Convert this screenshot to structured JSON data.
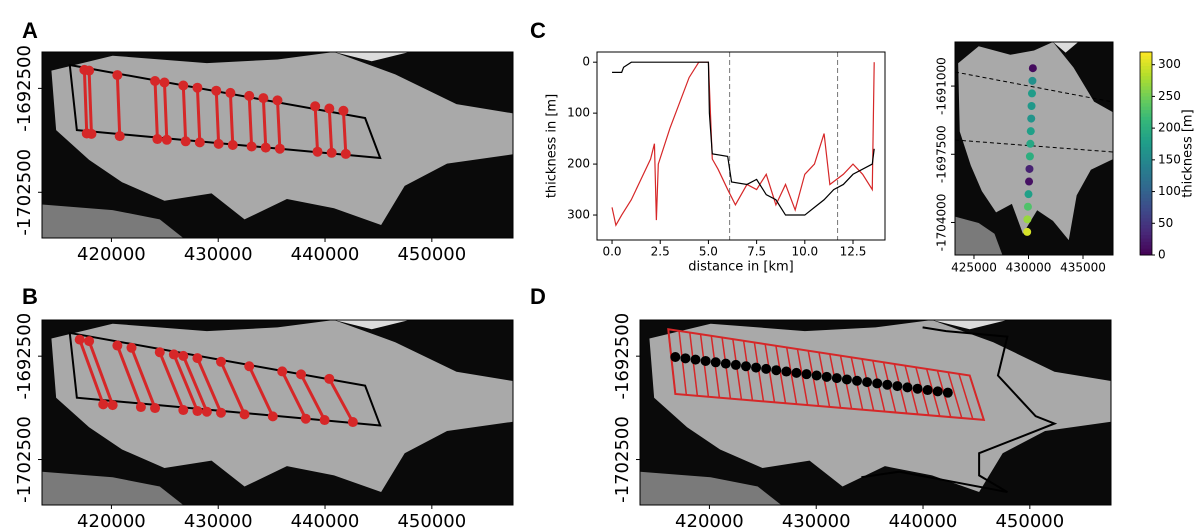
{
  "chart_data": [
    {
      "type": "map",
      "label": "A",
      "xlim": [
        413500,
        457600
      ],
      "ylim": [
        -1706900,
        -1689000
      ],
      "xticks": [
        420000,
        430000,
        440000,
        450000
      ],
      "yticks": [
        -1702500,
        -1692500
      ]
    },
    {
      "type": "map",
      "label": "B",
      "xlim": [
        413500,
        457600
      ],
      "ylim": [
        -1706900,
        -1689000
      ],
      "xticks": [
        420000,
        430000,
        440000,
        450000
      ],
      "yticks": [
        -1702500,
        -1692500
      ]
    },
    {
      "type": "line",
      "label": "C",
      "xlabel": "distance in [km]",
      "ylabel": "thickness in [m]",
      "xlim": [
        -0.78,
        14.16
      ],
      "ylim": [
        349,
        -20
      ],
      "xticks": [
        {
          "value": 0,
          "label": "0.0"
        },
        {
          "value": 2.5,
          "label": "2.5"
        },
        {
          "value": 5,
          "label": "5.0"
        },
        {
          "value": 7.5,
          "label": "7.5"
        },
        {
          "value": 10,
          "label": "10.0"
        },
        {
          "value": 12.5,
          "label": "12.5"
        }
      ],
      "yticks": [
        0,
        100,
        200,
        300
      ],
      "vlines": [
        6.1,
        11.7
      ],
      "series": [
        {
          "color": "#d62728",
          "x": [
            0,
            0.2,
            0.5,
            1,
            1.5,
            2,
            2.2,
            2.3,
            2.4,
            3,
            3.5,
            4,
            4.5,
            5,
            5.2,
            5.5,
            6,
            6.4,
            7,
            7.5,
            8,
            8.5,
            9,
            9.5,
            10,
            10.5,
            11,
            11.3,
            12,
            12.5,
            13,
            13.5,
            13.6
          ],
          "values": [
            285,
            320,
            300,
            270,
            230,
            190,
            160,
            310,
            200,
            130,
            80,
            30,
            0,
            0,
            190,
            210,
            250,
            280,
            240,
            250,
            220,
            280,
            240,
            290,
            220,
            200,
            140,
            240,
            220,
            200,
            220,
            250,
            0
          ]
        },
        {
          "color": "#000000",
          "x": [
            0,
            0.5,
            0.6,
            1,
            5,
            5.05,
            5.2,
            6,
            6.2,
            7,
            7.5,
            8,
            8.5,
            9,
            10,
            10.5,
            11,
            11.5,
            12,
            12.5,
            13.5,
            13.6
          ],
          "values": [
            20,
            20,
            10,
            0,
            0,
            100,
            180,
            185,
            235,
            240,
            230,
            260,
            270,
            300,
            300,
            285,
            270,
            250,
            240,
            220,
            200,
            170
          ]
        }
      ]
    },
    {
      "type": "map",
      "xlim": [
        423260,
        437750
      ],
      "ylim": [
        -1707100,
        -1686800
      ],
      "xticks": [
        425000,
        430000,
        435000
      ],
      "yticks": [
        -1704000,
        -1697500,
        -1691000
      ],
      "points": {
        "x": [
          430400,
          430360,
          430320,
          430280,
          430250,
          430210,
          430170,
          430130,
          430090,
          430050,
          430000,
          429950,
          429900,
          429880
        ],
        "y": [
          -1689300,
          -1690500,
          -1691700,
          -1692900,
          -1694100,
          -1695300,
          -1696500,
          -1697700,
          -1698900,
          -1700100,
          -1701300,
          -1702500,
          -1703700,
          -1704900
        ],
        "values": [
          10,
          160,
          175,
          170,
          165,
          180,
          190,
          200,
          30,
          15,
          180,
          230,
          270,
          300
        ]
      },
      "colorbar": {
        "label": "thickness [m]",
        "lim": [
          0,
          320
        ],
        "ticks": [
          0,
          50,
          100,
          150,
          200,
          250,
          300
        ],
        "colormap": "viridis"
      }
    },
    {
      "type": "map",
      "label": "D",
      "xlim": [
        413500,
        457600
      ],
      "ylim": [
        -1706900,
        -1689000
      ],
      "xticks": [
        420000,
        430000,
        440000,
        450000
      ],
      "yticks": [
        -1702500,
        -1692500
      ]
    }
  ]
}
